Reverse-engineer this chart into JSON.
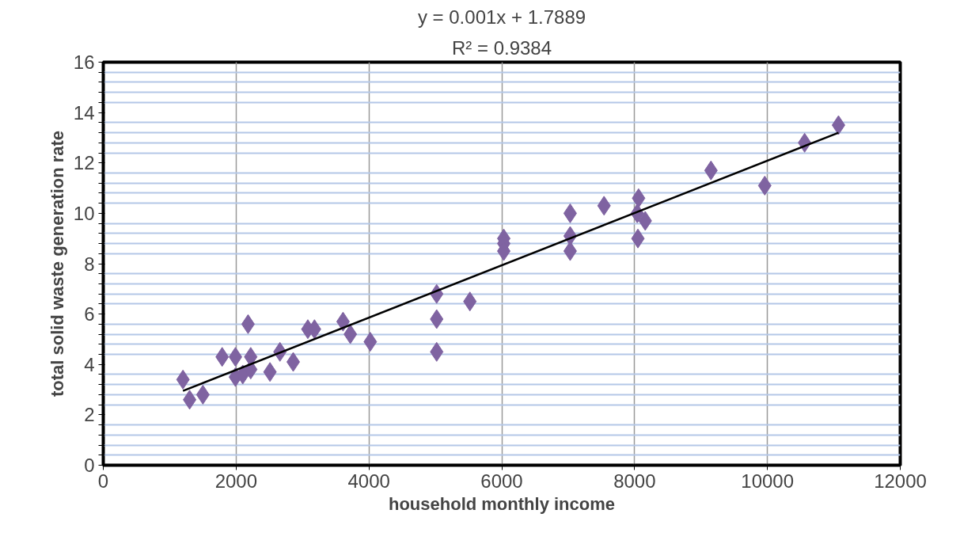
{
  "chart_data": {
    "type": "scatter",
    "xlabel": "household monthly income",
    "ylabel": "total solid waste generation rate",
    "annotations": [
      "y = 0.001x + 1.7889",
      "R² = 0.9384"
    ],
    "xlim": [
      0,
      12000
    ],
    "xticks": [
      0,
      2000,
      4000,
      6000,
      8000,
      10000,
      12000
    ],
    "ylim": [
      0,
      16
    ],
    "yticks": [
      0,
      {
        "value": 0.4,
        "label": null
      },
      {
        "value": 0.8,
        "label": null
      },
      {
        "value": 1.2,
        "label": null
      },
      {
        "value": 1.6,
        "label": null
      },
      2,
      {
        "value": 2.4,
        "label": null
      },
      {
        "value": 2.8,
        "label": null
      },
      {
        "value": 3.2,
        "label": null
      },
      {
        "value": 3.6,
        "label": null
      },
      4,
      {
        "value": 4.4,
        "label": null
      },
      {
        "value": 4.8,
        "label": null
      },
      {
        "value": 5.2,
        "label": null
      },
      {
        "value": 5.6,
        "label": null
      },
      6,
      {
        "value": 6.4,
        "label": null
      },
      {
        "value": 6.8,
        "label": null
      },
      {
        "value": 7.2,
        "label": null
      },
      {
        "value": 7.6,
        "label": null
      },
      8,
      {
        "value": 8.4,
        "label": null
      },
      {
        "value": 8.8,
        "label": null
      },
      {
        "value": 9.2,
        "label": null
      },
      {
        "value": 9.6,
        "label": null
      },
      10,
      {
        "value": 10.4,
        "label": null
      },
      {
        "value": 10.8,
        "label": null
      },
      {
        "value": 11.2,
        "label": null
      },
      {
        "value": 11.6,
        "label": null
      },
      12,
      {
        "value": 12.4,
        "label": null
      },
      {
        "value": 12.8,
        "label": null
      },
      {
        "value": 13.2,
        "label": null
      },
      {
        "value": 13.6,
        "label": null
      },
      14,
      {
        "value": 14.4,
        "label": null
      },
      {
        "value": 14.8,
        "label": null
      },
      {
        "value": 15.2,
        "label": null
      },
      {
        "value": 15.6,
        "label": null
      },
      16
    ],
    "grid": true,
    "marker": "diamond",
    "series": [
      {
        "color": "#7f63a1",
        "x": [
          1200,
          1300,
          1500,
          1790,
          1990,
          1990,
          2100,
          2220,
          2180,
          2220,
          2510,
          2660,
          2860,
          3080,
          3180,
          3610,
          3720,
          4020,
          5020,
          5020,
          5020,
          5520,
          6030,
          6030,
          6030,
          7030,
          7030,
          7030,
          7540,
          8060,
          8040,
          8160,
          8050,
          9150,
          9960,
          10560,
          11070
        ],
        "values": [
          3.4,
          2.6,
          2.8,
          4.3,
          4.3,
          3.5,
          3.6,
          4.3,
          5.6,
          3.8,
          3.7,
          4.5,
          4.1,
          5.4,
          5.4,
          5.7,
          5.2,
          4.9,
          6.8,
          5.8,
          4.5,
          6.5,
          9.0,
          8.8,
          8.5,
          10.0,
          9.1,
          8.5,
          10.3,
          10.6,
          10.0,
          9.7,
          9.0,
          11.7,
          11.1,
          12.8,
          13.5
        ]
      },
      {
        "type": "line",
        "color": "#000000",
        "marker": "none",
        "line_style": "solid",
        "x": [
          1200,
          11070
        ],
        "values": [
          2.95,
          13.2
        ]
      }
    ]
  }
}
